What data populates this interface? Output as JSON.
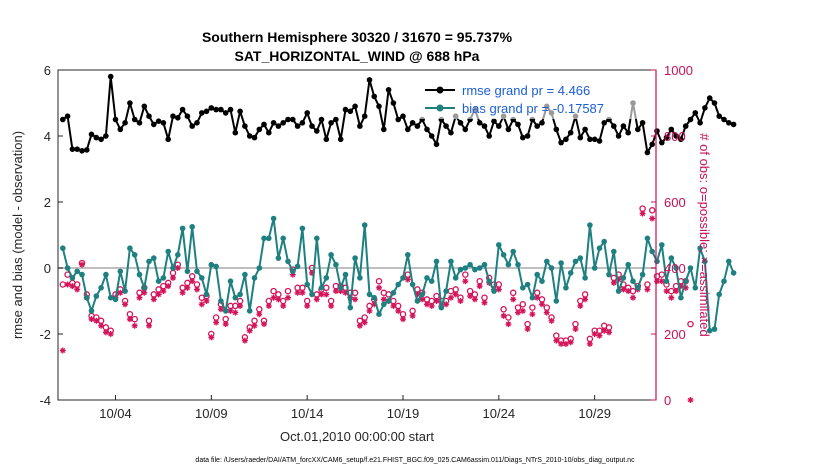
{
  "chart_data": {
    "type": "line",
    "title": "Southern Hemisphere 30320 / 31670 = 95.737%",
    "subtitle": "SAT_HORIZONTAL_WIND @ 688 hPa",
    "xlabel": "Oct.01,2010 00:00:00 start",
    "ylabel": "rmse and bias (model - observation)",
    "y2label": "# of obs: o=possible; ×=assimilated",
    "footer": "data file: /Users/raeder/DAI/ATM_forcXX/CAM6_setup/f.e21.FHIST_BGC.f09_025.CAM6assim.011/Diags_NTrS_2010-10/obs_diag_output.nc",
    "xlim": [
      1.0,
      32.2
    ],
    "ylim": [
      -4,
      6
    ],
    "y2lim": [
      0,
      1000
    ],
    "x_tick_labels": [
      "10/04",
      "10/09",
      "10/14",
      "10/19",
      "10/24",
      "10/29"
    ],
    "x_tick_days": [
      4,
      9,
      14,
      19,
      24,
      29
    ],
    "y_ticks": [
      "-4",
      "-2",
      "0",
      "2",
      "4",
      "6"
    ],
    "y2_ticks": [
      "0",
      "200",
      "400",
      "600",
      "800",
      "1000"
    ],
    "legend": {
      "position": "top-right",
      "entries": [
        "rmse grand pr = 4.466",
        "bias grand pr = -0.17587"
      ]
    },
    "x_start": 1.25,
    "x_step": 0.25,
    "series": [
      {
        "name": "rmse",
        "color": "#000000",
        "axis": "left",
        "values": [
          4.5,
          4.6,
          3.6,
          3.6,
          3.55,
          3.58,
          4.05,
          3.95,
          3.9,
          4.0,
          5.8,
          4.5,
          4.2,
          4.4,
          5.0,
          4.5,
          4.4,
          4.9,
          4.6,
          4.35,
          4.45,
          4.4,
          3.9,
          4.6,
          4.55,
          4.8,
          4.6,
          4.3,
          4.4,
          4.7,
          4.75,
          4.85,
          4.8,
          4.8,
          4.7,
          4.8,
          4.1,
          4.75,
          4.3,
          4.0,
          3.95,
          4.2,
          4.35,
          4.1,
          4.4,
          4.3,
          4.4,
          4.5,
          4.5,
          4.3,
          4.4,
          4.7,
          4.3,
          4.15,
          4.5,
          3.9,
          4.4,
          4.5,
          3.9,
          4.8,
          4.75,
          4.9,
          4.3,
          4.6,
          5.7,
          5.2,
          4.9,
          4.2,
          5.4,
          5.0,
          4.5,
          4.6,
          4.2,
          4.4,
          4.3,
          4.5,
          4.2,
          4.0,
          3.75,
          4.5,
          4.3,
          4.1,
          4.6,
          4.4,
          4.2,
          4.5,
          4.8,
          4.4,
          4.3,
          4.0,
          4.45,
          4.3,
          4.6,
          4.2,
          4.5,
          4.35,
          3.95,
          4.0,
          4.5,
          4.3,
          4.4,
          4.9,
          4.7,
          4.2,
          3.8,
          3.9,
          4.1,
          4.6,
          3.95,
          4.2,
          3.9,
          3.9,
          3.85,
          4.4,
          4.5,
          4.3,
          4.0,
          4.3,
          4.1,
          5.0,
          4.2,
          4.4,
          3.5,
          3.75,
          4.15,
          3.8,
          3.95,
          4.2,
          4.0,
          3.9,
          4.3,
          4.5,
          4.7,
          4.4,
          4.85,
          5.15,
          5.0,
          4.6,
          4.5,
          4.4,
          4.35
        ]
      },
      {
        "name": "bias",
        "color": "#1e8080",
        "axis": "left",
        "values": [
          0.6,
          0.0,
          -0.3,
          -0.1,
          -0.2,
          -0.9,
          -1.3,
          -0.85,
          -0.6,
          -0.2,
          -0.9,
          -0.95,
          -0.1,
          -0.7,
          0.6,
          0.4,
          -0.2,
          -0.6,
          0.2,
          0.3,
          -0.4,
          -0.3,
          0.5,
          0.0,
          0.4,
          1.2,
          -0.1,
          1.25,
          -0.1,
          -0.3,
          -0.8,
          0.1,
          0.05,
          -1.0,
          -1.3,
          -0.4,
          -0.9,
          -0.8,
          -0.2,
          -1.3,
          -0.3,
          0.0,
          0.9,
          0.9,
          1.5,
          0.3,
          0.9,
          0.2,
          -0.1,
          0.05,
          1.2,
          -0.5,
          -0.8,
          0.9,
          -0.6,
          -0.3,
          0.4,
          0.1,
          -0.6,
          -0.2,
          -1.2,
          0.3,
          -0.3,
          1.3,
          -0.8,
          -0.9,
          -1.4,
          -1.1,
          -1.0,
          -0.75,
          -0.5,
          -0.3,
          0.4,
          -0.5,
          -1.0,
          -0.8,
          -0.3,
          -0.4,
          0.2,
          -1.2,
          -0.7,
          0.2,
          -0.3,
          -0.05,
          0.0,
          0.1,
          -0.05,
          0.0,
          0.1,
          -0.4,
          -0.7,
          0.7,
          0.4,
          0.1,
          0.5,
          0.1,
          -0.6,
          -0.5,
          -0.9,
          -0.2,
          -0.4,
          0.2,
          0.0,
          -1.0,
          0.15,
          -0.6,
          -0.15,
          0.2,
          0.3,
          -0.3,
          1.3,
          0.0,
          0.6,
          0.8,
          -0.2,
          0.5,
          -0.7,
          -0.3,
          0.1,
          -0.4,
          -0.6,
          -0.2,
          0.9,
          0.5,
          0.2,
          0.7,
          -0.4,
          0.3,
          0.0,
          -0.9,
          -0.4,
          0.0,
          -0.6,
          0.6,
          0.2,
          -1.9,
          -1.85,
          -0.8,
          -0.4,
          0.2,
          -0.15
        ]
      },
      {
        "name": "possible",
        "color": "#d4145a",
        "axis": "right",
        "values": [
          350,
          380,
          355,
          350,
          415,
          320,
          255,
          250,
          240,
          220,
          210,
          320,
          335,
          300,
          260,
          245,
          325,
          340,
          240,
          320,
          335,
          345,
          355,
          385,
          410,
          340,
          355,
          375,
          350,
          310,
          315,
          200,
          250,
          290,
          245,
          285,
          285,
          300,
          190,
          220,
          240,
          275,
          240,
          300,
          330,
          320,
          300,
          330,
          395,
          340,
          340,
          300,
          400,
          320,
          335,
          340,
          300,
          345,
          345,
          340,
          325,
          325,
          240,
          250,
          285,
          305,
          360,
          325,
          320,
          300,
          285,
          260,
          380,
          270,
          335,
          325,
          305,
          300,
          315,
          300,
          300,
          330,
          335,
          310,
          380,
          330,
          320,
          360,
          310,
          370,
          350,
          350,
          275,
          250,
          325,
          280,
          290,
          230,
          280,
          325,
          305,
          280,
          250,
          195,
          180,
          180,
          185,
          230,
          300,
          320,
          185,
          210,
          210,
          225,
          220,
          370,
          380,
          350,
          340,
          330,
          345,
          580,
          350,
          575,
          375,
          380,
          350,
          330,
          345,
          360,
          360,
          230
        ]
      },
      {
        "name": "assimilated",
        "color": "#d4145a",
        "axis": "right",
        "values": [
          150,
          350,
          345,
          335,
          410,
          310,
          245,
          240,
          225,
          205,
          200,
          310,
          325,
          290,
          245,
          225,
          310,
          325,
          225,
          305,
          320,
          330,
          345,
          370,
          400,
          325,
          340,
          360,
          335,
          290,
          300,
          190,
          235,
          275,
          230,
          270,
          265,
          285,
          180,
          210,
          225,
          260,
          230,
          285,
          310,
          305,
          285,
          310,
          380,
          325,
          325,
          285,
          385,
          305,
          320,
          320,
          285,
          330,
          330,
          325,
          310,
          305,
          225,
          235,
          270,
          290,
          340,
          305,
          300,
          285,
          270,
          245,
          365,
          255,
          320,
          305,
          290,
          285,
          300,
          285,
          290,
          310,
          320,
          300,
          360,
          315,
          305,
          345,
          295,
          355,
          335,
          335,
          255,
          230,
          305,
          265,
          270,
          215,
          260,
          310,
          290,
          265,
          240,
          180,
          170,
          170,
          175,
          215,
          285,
          305,
          170,
          200,
          195,
          210,
          205,
          355,
          365,
          335,
          330,
          310,
          335,
          565,
          335,
          550,
          360,
          360,
          330,
          310,
          330,
          345,
          340,
          0
        ]
      }
    ]
  },
  "colors": {
    "rmse": "#000000",
    "bias": "#1e8080",
    "obs": "#d4145a",
    "right_axis": "#c8105a",
    "legend_text": "#1a5ed8",
    "zero_line": "#bfbfbf"
  }
}
